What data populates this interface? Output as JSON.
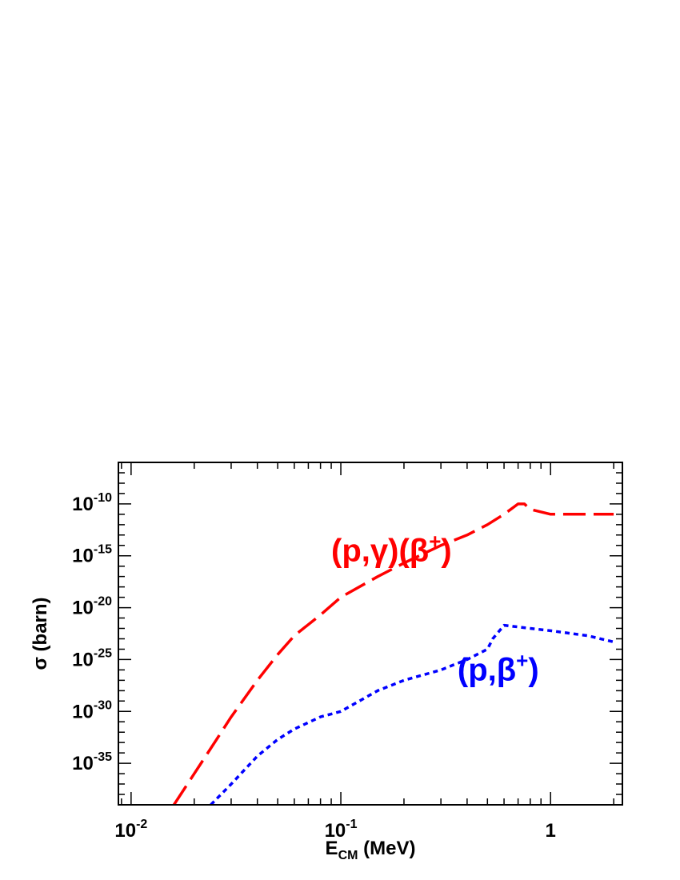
{
  "chart_data": {
    "type": "line",
    "title": "",
    "xlabel": {
      "main": "E",
      "sub": "CM",
      "rest": " (MeV)"
    },
    "ylabel": "σ (barn)",
    "x_scale": "log",
    "y_scale": "log",
    "xlim": [
      0.0087,
      2.2
    ],
    "ylim": [
      1e-39,
      1e-06
    ],
    "x_ticks": [
      {
        "value": 0.01,
        "base": "10",
        "exp": "-2"
      },
      {
        "value": 0.1,
        "base": "10",
        "exp": "-1"
      },
      {
        "value": 1,
        "base": "1",
        "exp": ""
      }
    ],
    "y_ticks": [
      {
        "value": 1e-10,
        "base": "10",
        "exp": "-10"
      },
      {
        "value": 1e-15,
        "base": "10",
        "exp": "-15"
      },
      {
        "value": 1e-20,
        "base": "10",
        "exp": "-20"
      },
      {
        "value": 1e-25,
        "base": "10",
        "exp": "-25"
      },
      {
        "value": 1e-30,
        "base": "10",
        "exp": "-30"
      },
      {
        "value": 1e-35,
        "base": "10",
        "exp": "-35"
      }
    ],
    "grid": false,
    "series": [
      {
        "label": "(p,γ)(β⁺)",
        "label_parts": {
          "main": "(p,γ)(β",
          "sup": "+",
          "end": ")"
        },
        "color": "#ff0000",
        "style": "dashed",
        "label_at": {
          "x": 0.09,
          "y": 3e-16
        },
        "x": [
          0.016,
          0.02,
          0.025,
          0.03,
          0.04,
          0.05,
          0.06,
          0.08,
          0.1,
          0.15,
          0.2,
          0.3,
          0.4,
          0.5,
          0.6,
          0.7,
          0.75,
          0.8,
          1.0,
          1.5,
          2.0
        ],
        "y": [
          1e-39,
          1e-36,
          1e-33,
          3e-31,
          1e-27,
          3e-25,
          2e-23,
          2e-21,
          1e-19,
          1e-17,
          2e-16,
          1e-14,
          1e-13,
          1e-12,
          1e-11,
          1e-10,
          1e-10,
          3e-11,
          1e-11,
          1e-11,
          1e-11
        ]
      },
      {
        "label": "(p,β⁺)",
        "label_parts": {
          "main": "(p,β",
          "sup": "+",
          "end": ")"
        },
        "color": "#0000ff",
        "style": "dotted",
        "label_at": {
          "x": 0.36,
          "y": 1e-27
        },
        "x": [
          0.024,
          0.03,
          0.04,
          0.05,
          0.06,
          0.08,
          0.1,
          0.15,
          0.2,
          0.3,
          0.4,
          0.5,
          0.53,
          0.6,
          0.8,
          1.0,
          1.5,
          2.0
        ],
        "y": [
          1e-39,
          1e-37,
          5e-35,
          2e-33,
          2e-32,
          3e-31,
          1e-30,
          1e-28,
          1e-27,
          1e-26,
          1e-25,
          1e-24,
          1e-23,
          2e-22,
          1e-22,
          6e-23,
          2e-23,
          5e-24
        ]
      }
    ]
  }
}
